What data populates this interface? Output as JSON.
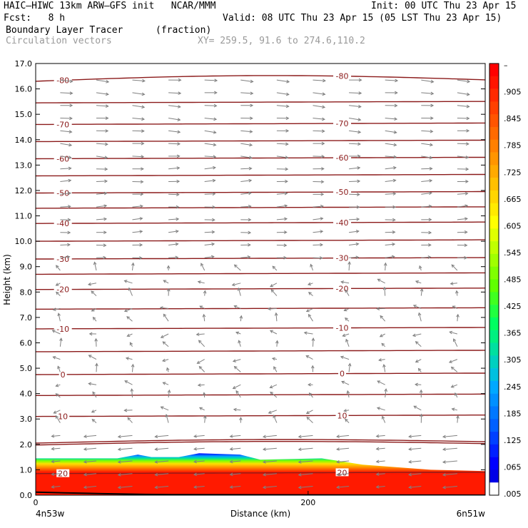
{
  "header": {
    "model": "HAIC–HIWC 13km ARW–GFS init   NCAR/MMM",
    "init": "Init: 00 UTC Thu 23 Apr 15",
    "fcst": "Fcst:   8 h",
    "valid": "Valid: 08 UTC Thu 23 Apr 15 (05 LST Thu 23 Apr 15)",
    "field": "Boundary Layer Tracer",
    "units": "(fraction)",
    "vectors": "Circulation vectors",
    "xy": "XY= 259.5, 91.6 to 274.6,110.2"
  },
  "colors": {
    "contour": "#8b1a1a",
    "vector": "#808080",
    "fill_low": "#0000ff",
    "fill_high": "#ff0000"
  },
  "chart_data": {
    "type": "cross-section",
    "xlabel": "Distance (km)",
    "ylabel": "Height (km)",
    "xlim": [
      0,
      330
    ],
    "ylim": [
      0,
      17
    ],
    "x_ticks": [
      {
        "value": 0,
        "label": "0"
      },
      {
        "value": 200,
        "label": "200"
      }
    ],
    "x_endpoints": [
      "4n53w",
      "6n51w"
    ],
    "y_ticks": [
      "0.0",
      "1.0",
      "2.0",
      "3.0",
      "4.0",
      "5.0",
      "6.0",
      "7.0",
      "8.0",
      "9.0",
      "10.0",
      "11.0",
      "12.0",
      "13.0",
      "14.0",
      "15.0",
      "16.0",
      "17.0"
    ],
    "colorbar": {
      "labels": [
        "–",
        ".905",
        ".845",
        ".785",
        ".725",
        ".665",
        ".605",
        ".545",
        ".485",
        ".425",
        ".365",
        ".305",
        ".245",
        ".185",
        ".125",
        ".065",
        ".005"
      ]
    },
    "temperature_contours": [
      {
        "label": "-80",
        "height_km": 16.3
      },
      {
        "label": "-70",
        "height_km": 14.6
      },
      {
        "label": "-60",
        "height_km": 13.25
      },
      {
        "label": "-50",
        "height_km": 11.9
      },
      {
        "label": "-40",
        "height_km": 10.7
      },
      {
        "label": "-30",
        "height_km": 9.3
      },
      {
        "label": "-20",
        "height_km": 8.1
      },
      {
        "label": "-10",
        "height_km": 6.55
      },
      {
        "label": "0",
        "height_km": 4.75
      },
      {
        "label": "10",
        "height_km": 3.1
      },
      {
        "label": "20",
        "height_km": 0.85
      }
    ],
    "tracer_top_km": [
      {
        "x": 0,
        "top": 1.45
      },
      {
        "x": 60,
        "top": 1.45
      },
      {
        "x": 75,
        "top": 1.6
      },
      {
        "x": 85,
        "top": 1.5
      },
      {
        "x": 105,
        "top": 1.5
      },
      {
        "x": 120,
        "top": 1.65
      },
      {
        "x": 150,
        "top": 1.6
      },
      {
        "x": 165,
        "top": 1.4
      },
      {
        "x": 210,
        "top": 1.45
      },
      {
        "x": 240,
        "top": 1.2
      },
      {
        "x": 290,
        "top": 1.0
      },
      {
        "x": 330,
        "top": 0.95
      }
    ]
  }
}
